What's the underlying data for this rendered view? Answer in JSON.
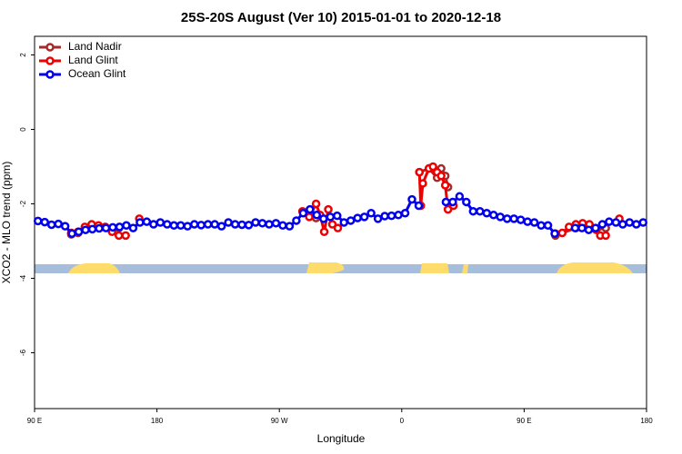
{
  "chart_data": {
    "type": "line",
    "title": "25S-20S August (Ver 10)   2015-01-01 to 2020-12-18",
    "xlabel": "Longitude",
    "ylabel": "XCO2 - MLO trend (ppm)",
    "xlim": [
      90,
      540
    ],
    "ylim": [
      -7.5,
      2.5
    ],
    "xticks": [
      {
        "value": 90,
        "label": "90 E"
      },
      180,
      {
        "value": 270,
        "label": "90 W"
      },
      {
        "value": 360,
        "label": "0"
      },
      {
        "value": 450,
        "label": "90 E"
      },
      {
        "value": 540,
        "label": "180"
      }
    ],
    "yticks": [
      -6,
      -4,
      -2,
      0,
      2
    ],
    "legend": "top-left",
    "series": [
      {
        "name": "Land Nadir",
        "color": "#a52a2a",
        "x": [
          117,
          122,
          137,
          147,
          152,
          200,
          292,
          297,
          340,
          373,
          380,
          386,
          389,
          392,
          394,
          440,
          473,
          488,
          503,
          510
        ],
        "values": [
          -2.82,
          -2.78,
          -2.6,
          -2.7,
          -2.65,
          null,
          -2.25,
          -2.38,
          null,
          -1.15,
          -1.05,
          -1.3,
          -1.05,
          -1.25,
          -1.55,
          null,
          -2.85,
          -2.65,
          -2.7,
          -2.65
        ]
      },
      {
        "name": "Land Glint",
        "color": "#ee0000",
        "x": [
          117,
          122,
          127,
          132,
          137,
          142,
          147,
          152,
          157,
          162,
          167,
          200,
          287,
          292,
          297,
          300,
          303,
          306,
          309,
          313,
          330,
          373,
          374,
          375.5,
          380,
          383,
          386,
          389,
          392,
          394,
          398,
          440,
          473,
          478,
          483,
          488,
          493,
          498,
          503,
          506,
          510,
          515,
          520
        ],
        "values": [
          -2.78,
          -2.75,
          -2.62,
          -2.55,
          -2.58,
          -2.62,
          -2.75,
          -2.85,
          -2.85,
          null,
          -2.4,
          null,
          -2.2,
          -2.35,
          -2.0,
          -2.3,
          -2.75,
          -2.15,
          -2.55,
          -2.65,
          null,
          -1.15,
          -2.05,
          -1.45,
          -1.05,
          -1.0,
          -1.15,
          -1.25,
          -1.5,
          -2.15,
          -2.05,
          null,
          -2.8,
          -2.78,
          -2.62,
          -2.55,
          -2.52,
          -2.55,
          -2.68,
          -2.85,
          -2.85,
          null,
          -2.4
        ]
      },
      {
        "name": "Ocean Glint",
        "color": "#0000ee",
        "x": [
          92.5,
          97.5,
          102.5,
          107.5,
          112.5,
          117.5,
          122.5,
          127.5,
          132.5,
          137.5,
          142.5,
          147.5,
          152.5,
          157.5,
          162.5,
          167.5,
          172.5,
          177.5,
          182.5,
          187.5,
          192.5,
          197.5,
          202.5,
          207.5,
          212.5,
          217.5,
          222.5,
          227.5,
          232.5,
          237.5,
          242.5,
          247.5,
          252.5,
          257.5,
          262.5,
          267.5,
          272.5,
          277.5,
          282.5,
          287.5,
          292.5,
          297.5,
          302.5,
          307.5,
          312.5,
          317.5,
          322.5,
          327.5,
          332.5,
          337.5,
          342.5,
          347.5,
          352.5,
          357.5,
          362.5,
          367.5,
          372.5,
          377.5,
          382.5,
          387.5,
          392.5,
          397.5,
          402.5,
          407.5,
          412.5,
          417.5,
          422.5,
          427.5,
          432.5,
          437.5,
          442.5,
          447.5,
          452.5,
          457.5,
          462.5,
          467.5,
          472.5,
          477.5,
          482.5,
          487.5,
          492.5,
          497.5,
          502.5,
          507.5,
          512.5,
          517.5,
          522.5,
          527.5,
          532.5,
          537.5
        ],
        "values": [
          -2.46,
          -2.49,
          -2.56,
          -2.54,
          -2.6,
          -2.8,
          -2.75,
          -2.7,
          -2.68,
          -2.66,
          -2.65,
          -2.63,
          -2.62,
          -2.58,
          -2.65,
          -2.5,
          -2.48,
          -2.55,
          -2.5,
          -2.55,
          -2.58,
          -2.58,
          -2.6,
          -2.55,
          -2.57,
          -2.55,
          -2.55,
          -2.6,
          -2.5,
          -2.55,
          -2.56,
          -2.57,
          -2.5,
          -2.52,
          -2.55,
          -2.52,
          -2.58,
          -2.6,
          -2.45,
          -2.25,
          -2.15,
          -2.3,
          -2.4,
          -2.35,
          -2.32,
          -2.5,
          -2.45,
          -2.38,
          -2.35,
          -2.25,
          -2.4,
          -2.33,
          -2.32,
          -2.3,
          -2.25,
          -1.88,
          -2.05,
          null,
          null,
          null,
          -1.95,
          -1.95,
          -1.8,
          -1.95,
          -2.2,
          -2.2,
          -2.25,
          -2.3,
          -2.35,
          -2.4,
          -2.4,
          -2.43,
          -2.48,
          -2.5,
          -2.58,
          -2.58,
          -2.8,
          null,
          null,
          -2.65,
          -2.65,
          -2.7,
          -2.65,
          -2.55,
          -2.48,
          -2.5,
          -2.55,
          -2.5,
          -2.55,
          -2.5
        ]
      }
    ]
  }
}
